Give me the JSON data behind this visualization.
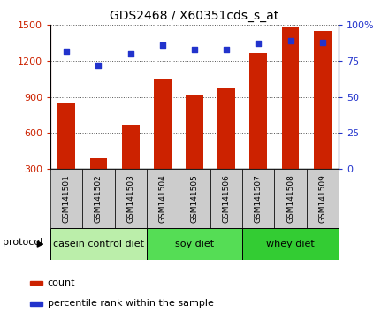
{
  "title": "GDS2468 / X60351cds_s_at",
  "samples": [
    "GSM141501",
    "GSM141502",
    "GSM141503",
    "GSM141504",
    "GSM141505",
    "GSM141506",
    "GSM141507",
    "GSM141508",
    "GSM141509"
  ],
  "counts": [
    850,
    390,
    670,
    1050,
    920,
    980,
    1270,
    1490,
    1450
  ],
  "percentile_ranks": [
    82,
    72,
    80,
    86,
    83,
    83,
    87,
    89,
    88
  ],
  "bar_color": "#cc2200",
  "dot_color": "#2233cc",
  "left_ylim": [
    300,
    1500
  ],
  "left_yticks": [
    300,
    600,
    900,
    1200,
    1500
  ],
  "right_ylim": [
    0,
    100
  ],
  "right_yticks": [
    0,
    25,
    50,
    75,
    100
  ],
  "right_yticklabels": [
    "0",
    "25",
    "50",
    "75",
    "100%"
  ],
  "groups": [
    {
      "label": "casein control diet",
      "start": 0,
      "end": 3,
      "color": "#bbeeaa"
    },
    {
      "label": "soy diet",
      "start": 3,
      "end": 6,
      "color": "#55dd55"
    },
    {
      "label": "whey diet",
      "start": 6,
      "end": 9,
      "color": "#33cc33"
    }
  ],
  "legend_count_label": "count",
  "legend_pct_label": "percentile rank within the sample",
  "protocol_label": "protocol",
  "tick_bg": "#cccccc",
  "grid_color": "#555555"
}
